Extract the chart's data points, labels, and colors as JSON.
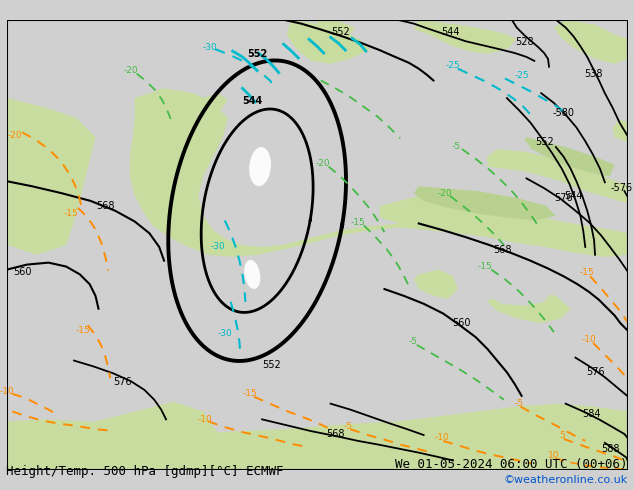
{
  "title_left": "Height/Temp. 500 hPa [gdmp][°C] ECMWF",
  "title_right": "We 01-05-2024 06:00 UTC (00+06)",
  "credit": "©weatheronline.co.uk",
  "figsize": [
    6.34,
    4.9
  ],
  "dpi": 100,
  "land_color": "#c8dca0",
  "sea_color": "#d8d8d8",
  "bg_color": "#d0d0d0",
  "height_color": "#000000",
  "temp_orange": "#ff8c00",
  "temp_cyan": "#00bbcc",
  "temp_green": "#44bb44",
  "title_fontsize": 9,
  "credit_color": "#0055cc"
}
